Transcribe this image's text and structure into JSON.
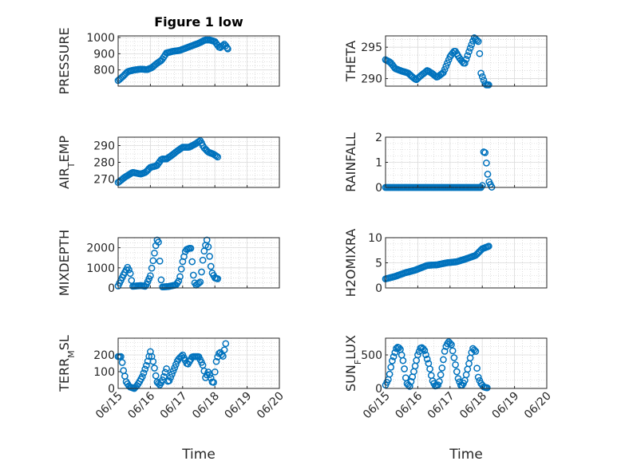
{
  "figure": {
    "title": "Figure 1 low",
    "marker_color": "#0072BD",
    "axis_color": "#262626",
    "grid_color": "#c8c8c8"
  },
  "chart_data": [
    {
      "type": "scatter",
      "title": "Figure 1 low",
      "ylabel": "PRESSURE",
      "xlabel": "",
      "xlim": [
        "06/15",
        "06/20"
      ],
      "xticks": [],
      "ylim": [
        700,
        1010
      ],
      "yticks": [
        800,
        900,
        1000
      ],
      "grid": true,
      "minor_grid": true,
      "keypoints": [
        [
          0,
          735
        ],
        [
          0.15,
          760
        ],
        [
          0.3,
          790
        ],
        [
          0.5,
          800
        ],
        [
          0.7,
          805
        ],
        [
          0.9,
          802
        ],
        [
          1.05,
          815
        ],
        [
          1.2,
          840
        ],
        [
          1.35,
          860
        ],
        [
          1.5,
          905
        ],
        [
          1.7,
          915
        ],
        [
          1.9,
          920
        ],
        [
          2.1,
          935
        ],
        [
          2.3,
          950
        ],
        [
          2.5,
          965
        ],
        [
          2.7,
          985
        ],
        [
          2.85,
          985
        ],
        [
          3.0,
          975
        ],
        [
          3.15,
          935
        ],
        [
          3.3,
          960
        ],
        [
          3.4,
          930
        ]
      ]
    },
    {
      "type": "scatter",
      "title": "",
      "ylabel": "THETA",
      "xlabel": "",
      "xlim": [
        "06/15",
        "06/20"
      ],
      "xticks": [],
      "ylim": [
        288.8,
        296.8
      ],
      "yticks": [
        290,
        295
      ],
      "grid": true,
      "minor_grid": true,
      "keypoints": [
        [
          0,
          293
        ],
        [
          0.15,
          292.6
        ],
        [
          0.3,
          291.6
        ],
        [
          0.5,
          291.2
        ],
        [
          0.7,
          290.9
        ],
        [
          0.85,
          290.2
        ],
        [
          0.95,
          289.8
        ],
        [
          1.1,
          290.5
        ],
        [
          1.3,
          291.3
        ],
        [
          1.45,
          290.8
        ],
        [
          1.6,
          290.2
        ],
        [
          1.8,
          291
        ],
        [
          2.0,
          293.5
        ],
        [
          2.15,
          294.5
        ],
        [
          2.3,
          293.2
        ],
        [
          2.45,
          292.3
        ],
        [
          2.6,
          294.5
        ],
        [
          2.75,
          296.5
        ],
        [
          2.9,
          295.8
        ],
        [
          2.95,
          291
        ],
        [
          3.1,
          289
        ],
        [
          3.2,
          289
        ]
      ]
    },
    {
      "type": "scatter",
      "title": "",
      "ylabel": "AIR_TEMP",
      "xlabel": "",
      "xlim": [
        "06/15",
        "06/20"
      ],
      "xticks": [],
      "ylim": [
        265,
        295
      ],
      "yticks": [
        270,
        280,
        290
      ],
      "grid": true,
      "minor_grid": true,
      "keypoints": [
        [
          0,
          268
        ],
        [
          0.2,
          271
        ],
        [
          0.45,
          274
        ],
        [
          0.7,
          273
        ],
        [
          0.85,
          274
        ],
        [
          1.0,
          277
        ],
        [
          1.2,
          278
        ],
        [
          1.35,
          282
        ],
        [
          1.5,
          282
        ],
        [
          1.65,
          284
        ],
        [
          1.85,
          287
        ],
        [
          2.0,
          289
        ],
        [
          2.2,
          289
        ],
        [
          2.4,
          291
        ],
        [
          2.55,
          293
        ],
        [
          2.65,
          289
        ],
        [
          2.8,
          286
        ],
        [
          2.95,
          285
        ],
        [
          3.1,
          283
        ]
      ]
    },
    {
      "type": "scatter",
      "title": "",
      "ylabel": "RAINFALL",
      "xlabel": "",
      "xlim": [
        "06/15",
        "06/20"
      ],
      "xticks": [],
      "ylim": [
        0,
        2
      ],
      "yticks": [
        0,
        1,
        2
      ],
      "grid": true,
      "minor_grid": true,
      "keypoints": [
        [
          0,
          0
        ],
        [
          3.0,
          0
        ],
        [
          3.05,
          1.6
        ],
        [
          3.1,
          1.3
        ],
        [
          3.15,
          0.7
        ],
        [
          3.2,
          0.25
        ],
        [
          3.3,
          0
        ]
      ]
    },
    {
      "type": "scatter",
      "title": "",
      "ylabel": "MIXDEPTH",
      "xlabel": "",
      "xlim": [
        "06/15",
        "06/20"
      ],
      "xticks": [],
      "ylim": [
        0,
        2500
      ],
      "yticks": [
        0,
        1000,
        2000
      ],
      "grid": true,
      "minor_grid": true,
      "keypoints": [
        [
          0,
          100
        ],
        [
          0.15,
          600
        ],
        [
          0.3,
          1050
        ],
        [
          0.38,
          700
        ],
        [
          0.45,
          80
        ],
        [
          0.7,
          120
        ],
        [
          0.85,
          80
        ],
        [
          1.0,
          600
        ],
        [
          1.1,
          1500
        ],
        [
          1.2,
          2400
        ],
        [
          1.25,
          2300
        ],
        [
          1.35,
          50
        ],
        [
          1.55,
          70
        ],
        [
          1.8,
          150
        ],
        [
          1.9,
          400
        ],
        [
          2.0,
          1300
        ],
        [
          2.1,
          1900
        ],
        [
          2.25,
          2000
        ],
        [
          2.35,
          400
        ],
        [
          2.4,
          120
        ],
        [
          2.55,
          300
        ],
        [
          2.65,
          1700
        ],
        [
          2.75,
          2400
        ],
        [
          2.8,
          2000
        ],
        [
          2.9,
          800
        ],
        [
          3.0,
          500
        ],
        [
          3.1,
          450
        ]
      ]
    },
    {
      "type": "scatter",
      "title": "",
      "ylabel": "H2OMIXRA",
      "xlabel": "",
      "xlim": [
        "06/15",
        "06/20"
      ],
      "xticks": [],
      "ylim": [
        0,
        10
      ],
      "yticks": [
        0,
        5,
        10
      ],
      "grid": true,
      "minor_grid": true,
      "keypoints": [
        [
          0,
          1.8
        ],
        [
          0.3,
          2.3
        ],
        [
          0.6,
          3
        ],
        [
          0.9,
          3.5
        ],
        [
          1.1,
          4
        ],
        [
          1.3,
          4.5
        ],
        [
          1.6,
          4.6
        ],
        [
          1.9,
          5
        ],
        [
          2.2,
          5.2
        ],
        [
          2.5,
          5.8
        ],
        [
          2.8,
          6.5
        ],
        [
          3.0,
          7.8
        ],
        [
          3.2,
          8.3
        ]
      ]
    },
    {
      "type": "scatter",
      "title": "",
      "ylabel": "TERR_MSL",
      "xlabel": "Time",
      "xlim": [
        "06/15",
        "06/20"
      ],
      "xticks": [
        "06/15",
        "06/16",
        "06/17",
        "06/18",
        "06/19",
        "06/20"
      ],
      "ylim": [
        0,
        300
      ],
      "yticks": [
        0,
        100,
        200
      ],
      "grid": true,
      "minor_grid": true,
      "keypoints": [
        [
          0,
          190
        ],
        [
          0.1,
          190
        ],
        [
          0.15,
          120
        ],
        [
          0.25,
          40
        ],
        [
          0.35,
          10
        ],
        [
          0.5,
          0
        ],
        [
          0.6,
          20
        ],
        [
          0.75,
          70
        ],
        [
          0.9,
          150
        ],
        [
          1.0,
          220
        ],
        [
          1.1,
          150
        ],
        [
          1.2,
          40
        ],
        [
          1.3,
          20
        ],
        [
          1.4,
          60
        ],
        [
          1.5,
          120
        ],
        [
          1.55,
          30
        ],
        [
          1.7,
          100
        ],
        [
          1.85,
          170
        ],
        [
          2.0,
          200
        ],
        [
          2.15,
          140
        ],
        [
          2.3,
          190
        ],
        [
          2.5,
          190
        ],
        [
          2.65,
          130
        ],
        [
          2.7,
          60
        ],
        [
          2.8,
          100
        ],
        [
          2.9,
          50
        ],
        [
          2.95,
          20
        ],
        [
          3.05,
          170
        ],
        [
          3.15,
          220
        ],
        [
          3.25,
          190
        ],
        [
          3.35,
          280
        ]
      ]
    },
    {
      "type": "scatter",
      "title": "",
      "ylabel": "SUN_FLUX",
      "xlabel": "Time",
      "xlim": [
        "06/15",
        "06/20"
      ],
      "xticks": [
        "06/15",
        "06/16",
        "06/17",
        "06/18",
        "06/19",
        "06/20"
      ],
      "ylim": [
        0,
        750
      ],
      "yticks": [
        0,
        500
      ],
      "grid": true,
      "minor_grid": true,
      "keypoints": [
        [
          0,
          50
        ],
        [
          0.1,
          150
        ],
        [
          0.2,
          400
        ],
        [
          0.35,
          620
        ],
        [
          0.45,
          600
        ],
        [
          0.55,
          400
        ],
        [
          0.65,
          80
        ],
        [
          0.75,
          30
        ],
        [
          0.85,
          200
        ],
        [
          1.0,
          500
        ],
        [
          1.1,
          620
        ],
        [
          1.2,
          580
        ],
        [
          1.35,
          350
        ],
        [
          1.45,
          120
        ],
        [
          1.55,
          30
        ],
        [
          1.65,
          60
        ],
        [
          1.75,
          300
        ],
        [
          1.85,
          600
        ],
        [
          1.95,
          700
        ],
        [
          2.05,
          650
        ],
        [
          2.15,
          400
        ],
        [
          2.25,
          150
        ],
        [
          2.35,
          30
        ],
        [
          2.45,
          100
        ],
        [
          2.6,
          400
        ],
        [
          2.7,
          600
        ],
        [
          2.8,
          550
        ],
        [
          2.85,
          200
        ],
        [
          2.95,
          80
        ],
        [
          3.05,
          20
        ],
        [
          3.15,
          10
        ]
      ]
    }
  ]
}
